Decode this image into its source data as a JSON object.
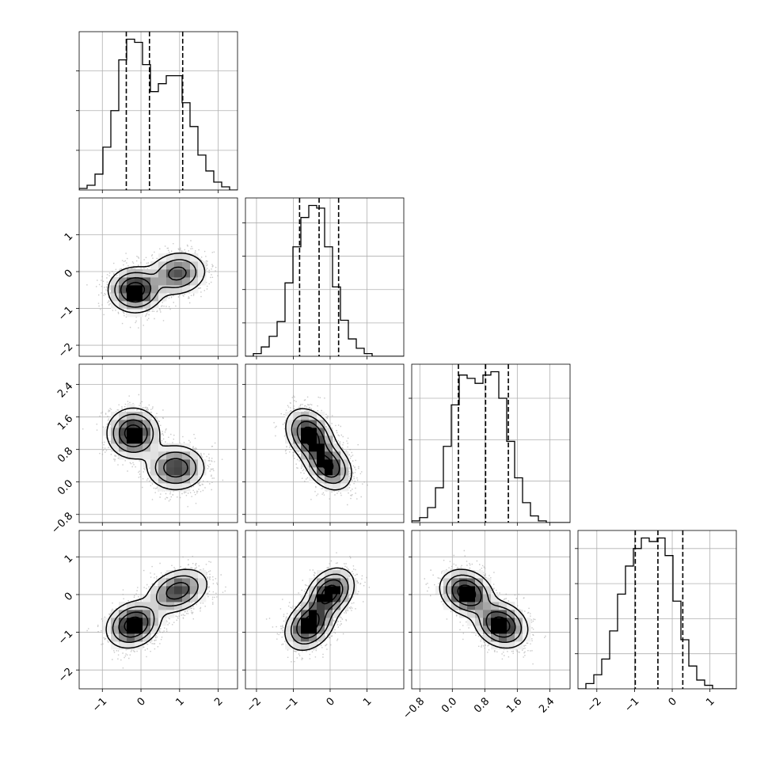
{
  "chart_data": {
    "type": "corner",
    "variables": [
      {
        "range": [
          -1.6,
          2.5
        ],
        "ticks": [
          -1,
          0,
          1,
          2
        ],
        "tick_labels": [
          "−1",
          "0",
          "1",
          "2"
        ],
        "quantiles": [
          -0.38,
          0.22,
          1.08
        ],
        "hist": [
          1,
          3,
          10,
          27,
          50,
          82,
          95,
          93,
          79,
          62,
          67,
          72,
          72,
          55,
          40,
          22,
          12,
          5,
          2,
          0
        ]
      },
      {
        "range": [
          -2.3,
          2.0
        ],
        "ticks": [
          -2,
          -1,
          0,
          1
        ],
        "tick_labels": [
          "−2",
          "−1",
          "0",
          "1"
        ],
        "quantiles": [
          -0.83,
          -0.3,
          0.23
        ],
        "hist": [
          0,
          2,
          7,
          15,
          26,
          55,
          82,
          104,
          113,
          111,
          82,
          52,
          27,
          13,
          6,
          2,
          0,
          0,
          0,
          0
        ]
      },
      {
        "range": [
          -1.0,
          2.9
        ],
        "ticks": [
          -0.8,
          0.0,
          0.8,
          1.6,
          2.4
        ],
        "tick_labels": [
          "−0.8",
          "0.0",
          "0.8",
          "1.6",
          "2.4"
        ],
        "quantiles": [
          0.15,
          0.82,
          1.38
        ],
        "hist": [
          1,
          3,
          9,
          21,
          46,
          71,
          89,
          87,
          84,
          89,
          91,
          75,
          49,
          27,
          12,
          4,
          1,
          0,
          0,
          0
        ]
      },
      {
        "range": [
          -2.5,
          1.7
        ],
        "ticks": [
          -2,
          -1,
          0,
          1
        ],
        "tick_labels": [
          "−2",
          "−1",
          "0",
          "1"
        ],
        "quantiles": [
          -0.98,
          -0.38,
          0.28
        ],
        "hist": [
          0,
          3,
          8,
          17,
          33,
          54,
          70,
          80,
          86,
          84,
          86,
          76,
          50,
          28,
          13,
          5,
          2,
          0,
          0,
          0
        ]
      }
    ],
    "pairs": [
      {
        "x": 0,
        "y": 1,
        "modes": [
          [
            -0.15,
            -0.5,
            0.34,
            0.3,
            0.0,
            0.58
          ],
          [
            0.95,
            -0.05,
            0.38,
            0.3,
            0.1,
            0.42
          ]
        ]
      },
      {
        "x": 0,
        "y": 2,
        "modes": [
          [
            -0.2,
            1.2,
            0.33,
            0.3,
            0.0,
            0.55
          ],
          [
            0.9,
            0.35,
            0.38,
            0.28,
            0.0,
            0.45
          ]
        ]
      },
      {
        "x": 0,
        "y": 3,
        "modes": [
          [
            -0.2,
            -0.8,
            0.34,
            0.3,
            0.2,
            0.55
          ],
          [
            0.95,
            0.1,
            0.4,
            0.3,
            0.3,
            0.45
          ]
        ]
      },
      {
        "x": 1,
        "y": 2,
        "modes": [
          [
            -0.55,
            1.15,
            0.32,
            0.32,
            -0.3,
            0.55
          ],
          [
            -0.05,
            0.4,
            0.32,
            0.3,
            -0.3,
            0.45
          ]
        ]
      },
      {
        "x": 1,
        "y": 3,
        "modes": [
          [
            -0.55,
            -0.8,
            0.33,
            0.33,
            0.3,
            0.52
          ],
          [
            0.0,
            0.05,
            0.32,
            0.32,
            0.3,
            0.48
          ]
        ]
      },
      {
        "x": 2,
        "y": 3,
        "modes": [
          [
            0.35,
            0.05,
            0.32,
            0.3,
            -0.2,
            0.5
          ],
          [
            1.2,
            -0.8,
            0.32,
            0.3,
            -0.2,
            0.5
          ]
        ]
      }
    ]
  }
}
